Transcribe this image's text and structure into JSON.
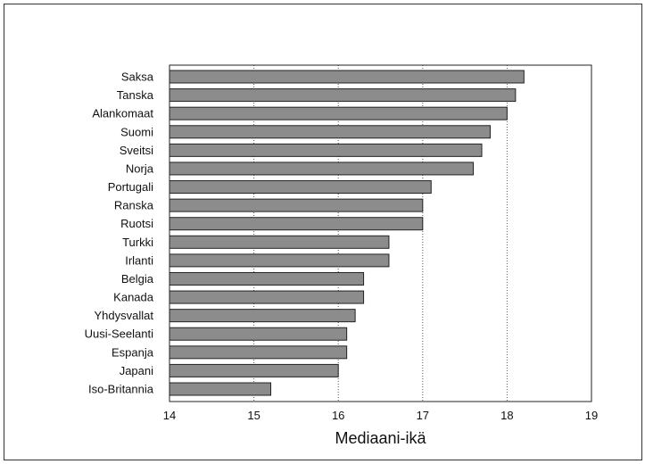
{
  "chart_data": {
    "type": "bar",
    "orientation": "horizontal",
    "categories": [
      "Saksa",
      "Tanska",
      "Alankomaat",
      "Suomi",
      "Sveitsi",
      "Norja",
      "Portugali",
      "Ranska",
      "Ruotsi",
      "Turkki",
      "Irlanti",
      "Belgia",
      "Kanada",
      "Yhdysvallat",
      "Uusi-Seelanti",
      "Espanja",
      "Japani",
      "Iso-Britannia"
    ],
    "values": [
      18.2,
      18.1,
      18.0,
      17.8,
      17.7,
      17.6,
      17.1,
      17.0,
      17.0,
      16.6,
      16.6,
      16.3,
      16.3,
      16.2,
      16.1,
      16.1,
      16.0,
      15.2
    ],
    "title": "",
    "xlabel": "Mediaani-ikä",
    "ylabel": "",
    "xlim": [
      14,
      19
    ],
    "xticks": [
      "14",
      "15",
      "16",
      "17",
      "18",
      "19"
    ],
    "grid": "vertical dotted",
    "bar_color": "#8c8c8c"
  }
}
